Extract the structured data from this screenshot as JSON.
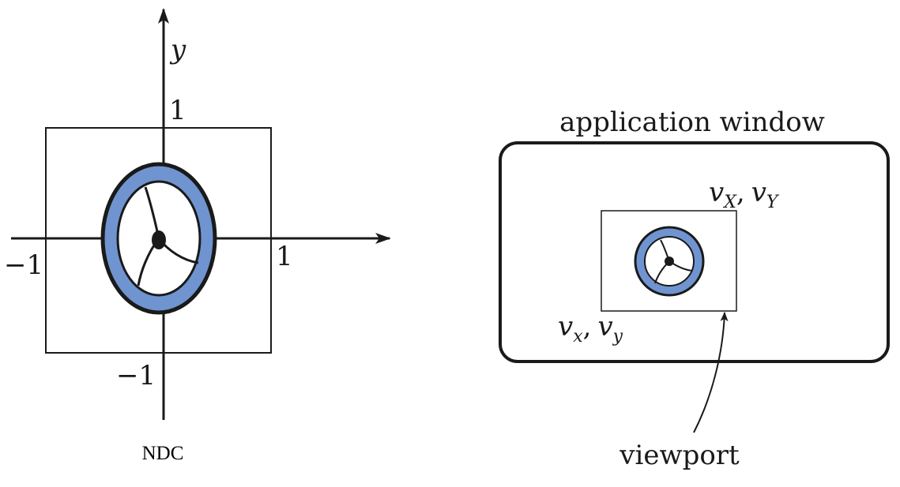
{
  "ndc": {
    "y_axis_label": "y",
    "tick_pos_y": "1",
    "tick_pos_x": "1",
    "tick_neg_x": "−1",
    "tick_neg_y": "−1",
    "caption": "NDC"
  },
  "window": {
    "title": "application window",
    "upper_corner": "v",
    "upper_corner_sub_x": "X",
    "upper_corner_sub_y": "Y",
    "lower_corner": "v",
    "lower_corner_sub_x": "x",
    "lower_corner_sub_y": "y",
    "separator": ",",
    "viewport_label": "viewport"
  },
  "colors": {
    "ring_fill": "#6f94d0",
    "stroke": "#1a1a1a",
    "background": "#ffffff"
  }
}
